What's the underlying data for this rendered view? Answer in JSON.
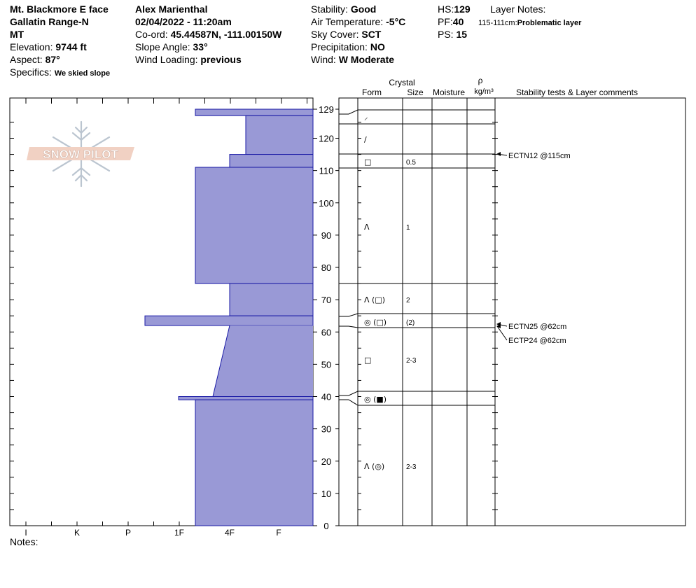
{
  "header": {
    "location": "Mt. Blackmore E face",
    "range": "Gallatin Range-N",
    "state": "MT",
    "elevation_label": "Elevation:",
    "elevation_value": "9744 ft",
    "aspect_label": "Aspect:",
    "aspect_value": "87°",
    "specifics_label": "Specifics:",
    "specifics_value": "We skied slope",
    "observer": "Alex Marienthal",
    "datetime": "02/04/2022 - 11:20am",
    "coord_label": "Co-ord:",
    "coord_value": "45.44587N, -111.00150W",
    "slope_label": "Slope Angle:",
    "slope_value": "33°",
    "wind_loading_label": "Wind Loading:",
    "wind_loading_value": "previous",
    "stability_label": "Stability:",
    "stability_value": "Good",
    "air_temp_label": "Air Temperature:",
    "air_temp_value": "-5°C",
    "sky_label": "Sky Cover:",
    "sky_value": "SCT",
    "precip_label": "Precipitation:",
    "precip_value": "NO",
    "wind_label": "Wind:",
    "wind_value": "W Moderate",
    "hs_label": "HS:",
    "hs_value": "129",
    "pf_label": "PF:",
    "pf_value": "40",
    "ps_label": "PS:",
    "ps_value": "15",
    "layer_notes_label": "Layer Notes:",
    "layer_notes_range": "115-111cm:",
    "layer_notes_text": "Problematic layer"
  },
  "logo_text": "SNOW PILOT",
  "notes_label": "Notes:",
  "colors": {
    "fill": "#9999d6",
    "edge": "#1a1aa6",
    "line": "#000000"
  },
  "column_headers": {
    "crystal": "Crystal",
    "form": "Form",
    "size": "Size",
    "moisture": "Moisture",
    "rho": "ρ",
    "density": "kg/m³",
    "comments": "Stability tests & Layer comments"
  },
  "chart_data": {
    "type": "snow_profile",
    "y_axis": {
      "label": "",
      "min": 0,
      "max": 129,
      "ticks": [
        0,
        10,
        20,
        30,
        40,
        50,
        60,
        70,
        80,
        90,
        100,
        110,
        120,
        129
      ]
    },
    "hardness_scale": [
      "I",
      "K",
      "P",
      "1F",
      "4F",
      "F"
    ],
    "hardness_profile": [
      {
        "top": 129,
        "bottom": 127,
        "hardness": "1F+"
      },
      {
        "top": 127,
        "bottom": 115,
        "hardness": "4F+"
      },
      {
        "top": 115,
        "bottom": 111,
        "hardness": "4F"
      },
      {
        "top": 111,
        "bottom": 75,
        "hardness": "1F+"
      },
      {
        "top": 75,
        "bottom": 65,
        "hardness": "4F"
      },
      {
        "top": 65,
        "bottom": 62,
        "hardness": "P+"
      },
      {
        "top": 62,
        "bottom": 40,
        "hardness": "4F to 1F+ (sloped)"
      },
      {
        "top": 40,
        "bottom": 39,
        "hardness": "1F-"
      },
      {
        "top": 39,
        "bottom": 0,
        "hardness": "1F+"
      }
    ],
    "layers": [
      {
        "top": 129,
        "bottom": 125,
        "form": "⸝",
        "size": ""
      },
      {
        "top": 125,
        "bottom": 115,
        "form": "/",
        "size": ""
      },
      {
        "top": 115,
        "bottom": 111,
        "form": "□",
        "size": "0.5"
      },
      {
        "top": 111,
        "bottom": 75,
        "form": "ᐱ",
        "size": "1"
      },
      {
        "top": 75,
        "bottom": 65,
        "form": "ᐱ (□)",
        "size": "2"
      },
      {
        "top": 65,
        "bottom": 62,
        "form": "◎ (□)",
        "size": "(2)"
      },
      {
        "top": 62,
        "bottom": 40,
        "form": "□",
        "size": "2-3"
      },
      {
        "top": 40,
        "bottom": 39,
        "form": "◎ (■)",
        "size": ""
      },
      {
        "top": 39,
        "bottom": 0,
        "form": "ᐱ (◎)",
        "size": "2-3"
      }
    ],
    "stability_tests": [
      {
        "text": "ECTN12 @115cm",
        "height": 115
      },
      {
        "text": "ECTN25 @62cm",
        "height": 62
      },
      {
        "text": "ECTP24 @62cm",
        "height": 62
      }
    ]
  }
}
